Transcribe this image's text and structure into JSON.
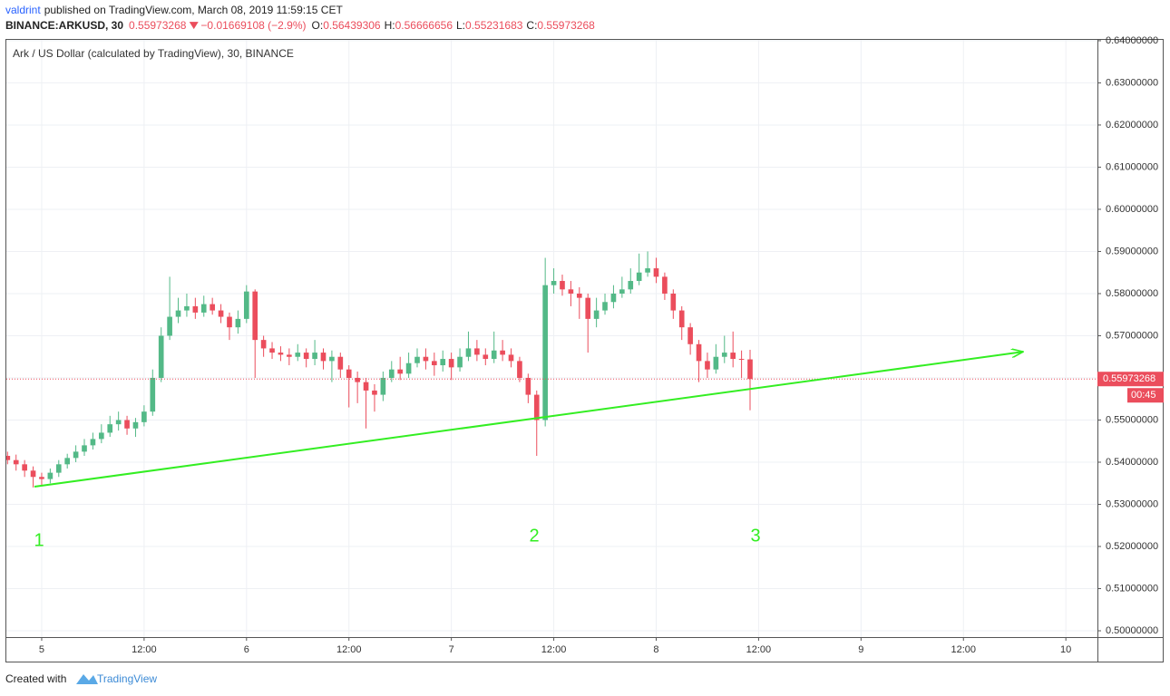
{
  "header": {
    "author": "valdrint",
    "published": "published on TradingView.com, March 08, 2019 11:59:15 CET",
    "symbol": "BINANCE:ARKUSD, 30",
    "change": "−0.01669108 (−2.9%)",
    "ohlc_labels": [
      "O:",
      "H:",
      "L:",
      "C:"
    ]
  },
  "footer": {
    "created": "Created with",
    "brand": "TradingView"
  },
  "chart_data": {
    "type": "candlestick",
    "title": "Ark / US Dollar (calculated by TradingView), 30, BINANCE",
    "countdown": "00:45",
    "up_color": "#53b987",
    "down_color": "#eb4d5c",
    "grid": true,
    "x": [
      -4,
      -3,
      -2,
      -1,
      0,
      1,
      2,
      3,
      4,
      5,
      6,
      7,
      8,
      9,
      10,
      11,
      12,
      13,
      14,
      15,
      16,
      17,
      18,
      19,
      20,
      21,
      22,
      23,
      24,
      25,
      26,
      27,
      28,
      29,
      30,
      31,
      32,
      33,
      34,
      35,
      36,
      37,
      38,
      39,
      40,
      41,
      42,
      43,
      44,
      45,
      46,
      47,
      48,
      49,
      50,
      51,
      52,
      53,
      54,
      55,
      56,
      57,
      58,
      59,
      60,
      61,
      62,
      63,
      64,
      65,
      66,
      67,
      68,
      69,
      70,
      71,
      72,
      73,
      74,
      75,
      76,
      77,
      78,
      79,
      80,
      81,
      82,
      83
    ],
    "open": [
      0.5415,
      0.5405,
      0.5395,
      0.538,
      0.5365,
      0.536,
      0.5375,
      0.5395,
      0.541,
      0.5425,
      0.544,
      0.5455,
      0.547,
      0.549,
      0.55,
      0.548,
      0.5495,
      0.552,
      0.56,
      0.57,
      0.5745,
      0.576,
      0.577,
      0.5755,
      0.5775,
      0.576,
      0.5745,
      0.572,
      0.574,
      0.5805,
      0.569,
      0.567,
      0.566,
      0.5655,
      0.565,
      0.566,
      0.5645,
      0.566,
      0.564,
      0.565,
      0.562,
      0.56,
      0.559,
      0.557,
      0.556,
      0.56,
      0.562,
      0.561,
      0.5635,
      0.565,
      0.564,
      0.563,
      0.5645,
      0.5625,
      0.565,
      0.567,
      0.5655,
      0.5645,
      0.5665,
      0.5655,
      0.564,
      0.56,
      0.556,
      0.55,
      0.582,
      0.583,
      0.581,
      0.58,
      0.579,
      0.574,
      0.576,
      0.578,
      0.58,
      0.581,
      0.583,
      0.585,
      0.586,
      0.584,
      0.58,
      0.576,
      0.572,
      0.568,
      0.564,
      0.562,
      0.565,
      0.566,
      0.5645,
      0.56439306
    ],
    "high": [
      0.5425,
      0.5418,
      0.5405,
      0.539,
      0.5375,
      0.5385,
      0.5405,
      0.542,
      0.544,
      0.5455,
      0.547,
      0.549,
      0.551,
      0.552,
      0.551,
      0.5505,
      0.5535,
      0.562,
      0.572,
      0.584,
      0.579,
      0.58,
      0.579,
      0.5795,
      0.579,
      0.5775,
      0.5755,
      0.576,
      0.582,
      0.581,
      0.57,
      0.5685,
      0.5675,
      0.567,
      0.568,
      0.567,
      0.569,
      0.567,
      0.5665,
      0.566,
      0.563,
      0.5615,
      0.56,
      0.5585,
      0.5615,
      0.564,
      0.565,
      0.566,
      0.567,
      0.567,
      0.566,
      0.5665,
      0.566,
      0.567,
      0.571,
      0.569,
      0.567,
      0.571,
      0.569,
      0.567,
      0.565,
      0.561,
      0.557,
      0.5885,
      0.586,
      0.5845,
      0.583,
      0.5815,
      0.58,
      0.579,
      0.58,
      0.582,
      0.584,
      0.586,
      0.5895,
      0.59,
      0.5885,
      0.585,
      0.581,
      0.577,
      0.573,
      0.569,
      0.566,
      0.568,
      0.57,
      0.571,
      0.5665,
      0.56666656
    ],
    "low": [
      0.5395,
      0.538,
      0.5365,
      0.534,
      0.5345,
      0.535,
      0.5365,
      0.5385,
      0.54,
      0.5415,
      0.543,
      0.5445,
      0.546,
      0.5475,
      0.5465,
      0.546,
      0.5485,
      0.551,
      0.559,
      0.569,
      0.573,
      0.5745,
      0.574,
      0.5745,
      0.575,
      0.573,
      0.569,
      0.5705,
      0.573,
      0.56,
      0.565,
      0.5645,
      0.564,
      0.563,
      0.564,
      0.5625,
      0.563,
      0.562,
      0.559,
      0.56,
      0.553,
      0.554,
      0.548,
      0.552,
      0.5545,
      0.559,
      0.5595,
      0.56,
      0.5625,
      0.562,
      0.5605,
      0.5615,
      0.5595,
      0.5615,
      0.564,
      0.564,
      0.563,
      0.5635,
      0.564,
      0.5625,
      0.559,
      0.554,
      0.5415,
      0.5485,
      0.58,
      0.5795,
      0.577,
      0.574,
      0.566,
      0.572,
      0.575,
      0.5765,
      0.579,
      0.58,
      0.582,
      0.584,
      0.5825,
      0.5785,
      0.574,
      0.569,
      0.5655,
      0.559,
      0.56,
      0.561,
      0.5635,
      0.5625,
      0.56,
      0.55231683
    ],
    "close": [
      0.5405,
      0.5395,
      0.538,
      0.5365,
      0.536,
      0.5375,
      0.5395,
      0.541,
      0.5425,
      0.544,
      0.5455,
      0.547,
      0.549,
      0.55,
      0.548,
      0.5495,
      0.552,
      0.56,
      0.57,
      0.5745,
      0.576,
      0.577,
      0.5755,
      0.5775,
      0.576,
      0.5745,
      0.572,
      0.574,
      0.5805,
      0.569,
      0.567,
      0.566,
      0.5655,
      0.565,
      0.566,
      0.5645,
      0.566,
      0.564,
      0.565,
      0.562,
      0.56,
      0.559,
      0.557,
      0.556,
      0.56,
      0.562,
      0.561,
      0.5635,
      0.565,
      0.564,
      0.563,
      0.5645,
      0.5625,
      0.565,
      0.567,
      0.5655,
      0.5645,
      0.5665,
      0.5655,
      0.564,
      0.56,
      0.556,
      0.55,
      0.582,
      0.583,
      0.581,
      0.58,
      0.579,
      0.574,
      0.576,
      0.578,
      0.58,
      0.581,
      0.583,
      0.585,
      0.586,
      0.584,
      0.58,
      0.576,
      0.572,
      0.568,
      0.564,
      0.562,
      0.565,
      0.566,
      0.5645,
      0.5644,
      0.55973268
    ],
    "xlim": [
      -4.14,
      123.7
    ],
    "ylim": [
      0.4985,
      0.6402
    ],
    "xticks": [
      {
        "value": 0,
        "label": "5"
      },
      {
        "value": 12,
        "label": "12:00"
      },
      {
        "value": 24,
        "label": "6"
      },
      {
        "value": 36,
        "label": "12:00"
      },
      {
        "value": 48,
        "label": "7"
      },
      {
        "value": 60,
        "label": "12:00"
      },
      {
        "value": 72,
        "label": "8"
      },
      {
        "value": 84,
        "label": "12:00"
      },
      {
        "value": 96,
        "label": "9"
      },
      {
        "value": 108,
        "label": "12:00"
      },
      {
        "value": 120,
        "label": "10"
      }
    ],
    "yticks": [
      {
        "value": 0.5,
        "label": "0.50000000"
      },
      {
        "value": 0.51,
        "label": "0.51000000"
      },
      {
        "value": 0.52,
        "label": "0.52000000"
      },
      {
        "value": 0.53,
        "label": "0.53000000"
      },
      {
        "value": 0.54,
        "label": "0.54000000"
      },
      {
        "value": 0.55,
        "label": "0.55000000"
      },
      {
        "value": 0.56,
        "label": "0.56000000"
      },
      {
        "value": 0.57,
        "label": "0.57000000"
      },
      {
        "value": 0.58,
        "label": "0.58000000"
      },
      {
        "value": 0.59,
        "label": "0.59000000"
      },
      {
        "value": 0.6,
        "label": "0.60000000"
      },
      {
        "value": 0.61,
        "label": "0.61000000"
      },
      {
        "value": 0.62,
        "label": "0.62000000"
      },
      {
        "value": 0.63,
        "label": "0.63000000"
      },
      {
        "value": 0.64,
        "label": "0.64000000"
      }
    ],
    "trendline": {
      "color": "#33ee22",
      "points": [
        [
          -0.85,
          0.5342
        ],
        [
          115,
          0.5662
        ]
      ]
    },
    "annotations": [
      {
        "text": "1",
        "color": "#33ee22"
      },
      {
        "text": "2",
        "color": "#33ee22"
      },
      {
        "text": "3",
        "color": "#33ee22"
      }
    ]
  }
}
